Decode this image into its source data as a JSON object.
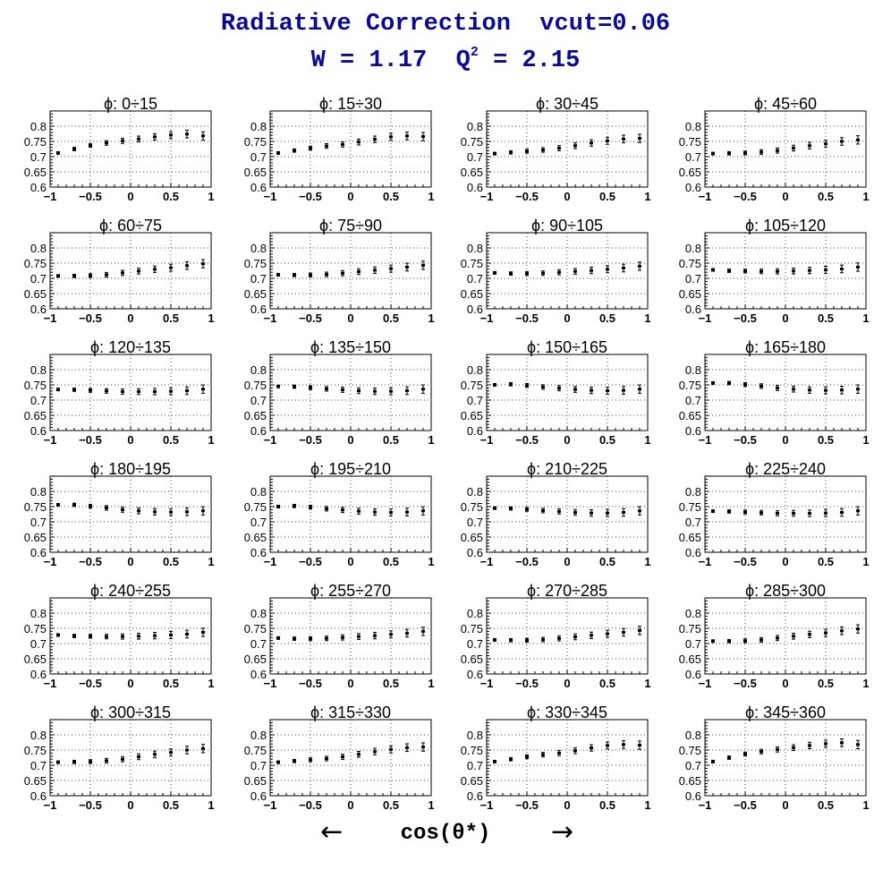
{
  "header": {
    "title": "Radiative Correction  vcut=0.06",
    "subtitle_prefix": "W = 1.17  Q",
    "subtitle_sup": "2",
    "subtitle_suffix": " = 2.15"
  },
  "footer": {
    "xlabel": "cos(θ*)",
    "left_arrow": "←",
    "right_arrow": "→"
  },
  "chart_data": {
    "type": "scatter",
    "grid": true,
    "xlim": [
      -1,
      1
    ],
    "ylim": [
      0.6,
      0.85
    ],
    "xticks": [
      "−1",
      "−0.5",
      "0",
      "0.5",
      "1"
    ],
    "yticks": [
      "0.6",
      "0.65",
      "0.7",
      "0.75",
      "0.8"
    ],
    "x": [
      -0.9,
      -0.7,
      -0.5,
      -0.3,
      -0.1,
      0.1,
      0.3,
      0.5,
      0.7,
      0.9
    ],
    "panels": [
      {
        "title": "ϕ:  0÷15",
        "values": [
          0.712,
          0.725,
          0.737,
          0.745,
          0.752,
          0.758,
          0.765,
          0.771,
          0.774,
          0.768
        ]
      },
      {
        "title": "ϕ:  15÷30",
        "values": [
          0.712,
          0.72,
          0.728,
          0.735,
          0.74,
          0.748,
          0.757,
          0.765,
          0.768,
          0.766
        ]
      },
      {
        "title": "ϕ:  30÷45",
        "values": [
          0.71,
          0.714,
          0.718,
          0.722,
          0.728,
          0.736,
          0.745,
          0.752,
          0.758,
          0.76
        ]
      },
      {
        "title": "ϕ:  45÷60",
        "values": [
          0.71,
          0.711,
          0.712,
          0.715,
          0.72,
          0.728,
          0.736,
          0.742,
          0.75,
          0.755
        ]
      },
      {
        "title": "ϕ:  60÷75",
        "values": [
          0.708,
          0.708,
          0.709,
          0.712,
          0.718,
          0.724,
          0.73,
          0.735,
          0.742,
          0.748
        ]
      },
      {
        "title": "ϕ:  75÷90",
        "values": [
          0.712,
          0.711,
          0.711,
          0.713,
          0.717,
          0.722,
          0.727,
          0.732,
          0.737,
          0.743
        ]
      },
      {
        "title": "ϕ:  90÷105",
        "values": [
          0.718,
          0.716,
          0.716,
          0.717,
          0.72,
          0.723,
          0.726,
          0.73,
          0.734,
          0.74
        ]
      },
      {
        "title": "ϕ:  105÷120",
        "values": [
          0.728,
          0.725,
          0.724,
          0.723,
          0.723,
          0.724,
          0.726,
          0.728,
          0.731,
          0.737
        ]
      },
      {
        "title": "ϕ:  120÷135",
        "values": [
          0.735,
          0.734,
          0.732,
          0.73,
          0.728,
          0.728,
          0.728,
          0.729,
          0.731,
          0.736
        ]
      },
      {
        "title": "ϕ:  135÷150",
        "values": [
          0.745,
          0.744,
          0.741,
          0.737,
          0.734,
          0.731,
          0.729,
          0.729,
          0.731,
          0.736
        ]
      },
      {
        "title": "ϕ:  150÷165",
        "values": [
          0.75,
          0.752,
          0.748,
          0.743,
          0.739,
          0.735,
          0.732,
          0.731,
          0.732,
          0.736
        ]
      },
      {
        "title": "ϕ:  165÷180",
        "values": [
          0.756,
          0.756,
          0.751,
          0.746,
          0.74,
          0.736,
          0.733,
          0.732,
          0.733,
          0.736
        ]
      },
      {
        "title": "ϕ:  180÷195",
        "values": [
          0.756,
          0.756,
          0.751,
          0.746,
          0.74,
          0.736,
          0.733,
          0.732,
          0.733,
          0.736
        ]
      },
      {
        "title": "ϕ:  195÷210",
        "values": [
          0.75,
          0.752,
          0.748,
          0.743,
          0.739,
          0.735,
          0.732,
          0.731,
          0.732,
          0.736
        ]
      },
      {
        "title": "ϕ:  210÷225",
        "values": [
          0.745,
          0.744,
          0.741,
          0.737,
          0.734,
          0.731,
          0.729,
          0.729,
          0.731,
          0.736
        ]
      },
      {
        "title": "ϕ:  225÷240",
        "values": [
          0.735,
          0.734,
          0.732,
          0.73,
          0.728,
          0.728,
          0.728,
          0.729,
          0.731,
          0.736
        ]
      },
      {
        "title": "ϕ:  240÷255",
        "values": [
          0.728,
          0.725,
          0.724,
          0.723,
          0.723,
          0.724,
          0.726,
          0.728,
          0.731,
          0.737
        ]
      },
      {
        "title": "ϕ:  255÷270",
        "values": [
          0.718,
          0.716,
          0.716,
          0.717,
          0.72,
          0.723,
          0.726,
          0.73,
          0.734,
          0.74
        ]
      },
      {
        "title": "ϕ:  270÷285",
        "values": [
          0.712,
          0.711,
          0.711,
          0.713,
          0.717,
          0.722,
          0.727,
          0.732,
          0.737,
          0.743
        ]
      },
      {
        "title": "ϕ:  285÷300",
        "values": [
          0.708,
          0.708,
          0.709,
          0.712,
          0.718,
          0.724,
          0.73,
          0.735,
          0.742,
          0.748
        ]
      },
      {
        "title": "ϕ:  300÷315",
        "values": [
          0.71,
          0.711,
          0.712,
          0.715,
          0.72,
          0.728,
          0.736,
          0.742,
          0.75,
          0.755
        ]
      },
      {
        "title": "ϕ:  315÷330",
        "values": [
          0.71,
          0.714,
          0.718,
          0.722,
          0.728,
          0.736,
          0.745,
          0.752,
          0.758,
          0.76
        ]
      },
      {
        "title": "ϕ:  330÷345",
        "values": [
          0.712,
          0.72,
          0.728,
          0.735,
          0.74,
          0.748,
          0.757,
          0.765,
          0.768,
          0.766
        ]
      },
      {
        "title": "ϕ:  345÷360",
        "values": [
          0.712,
          0.725,
          0.737,
          0.745,
          0.752,
          0.758,
          0.765,
          0.771,
          0.774,
          0.768
        ]
      }
    ]
  }
}
